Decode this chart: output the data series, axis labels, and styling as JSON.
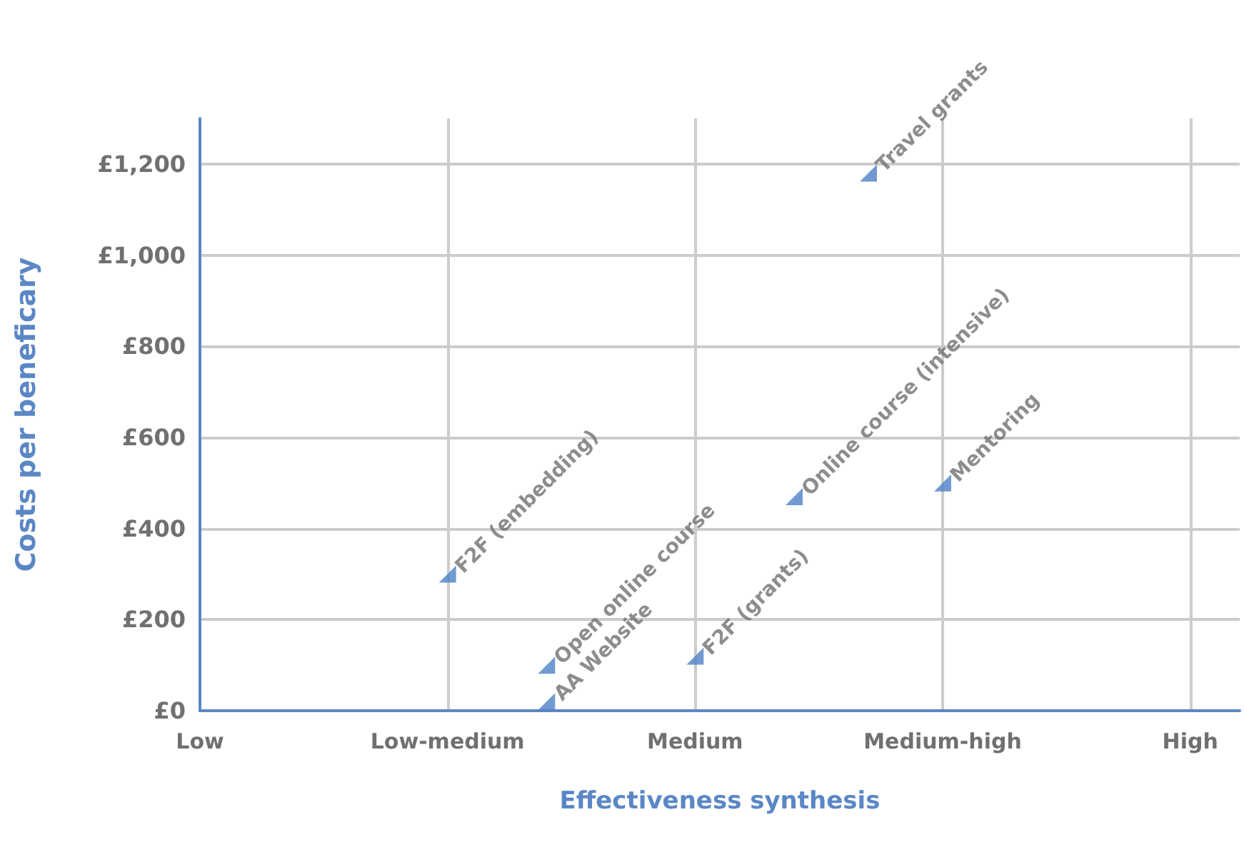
{
  "chart_data": {
    "type": "scatter",
    "xlabel": "Effectiveness synthesis",
    "ylabel": "Costs per beneficary",
    "categories": [
      "Low",
      null,
      null,
      null,
      null,
      null,
      null,
      null,
      null,
      null,
      "Low-medium",
      null,
      null,
      null,
      null,
      null,
      null,
      null,
      null,
      null,
      "Medium",
      null,
      null,
      null,
      null,
      null,
      null,
      null,
      null,
      null,
      "Medium-high",
      null,
      null,
      null,
      null,
      null,
      null,
      null,
      null,
      null,
      "High",
      null,
      null
    ],
    "ylim": [
      0,
      1300
    ],
    "yticks": [
      {
        "value": 0,
        "label": "£0"
      },
      {
        "value": 200,
        "label": "£200"
      },
      {
        "value": 400,
        "label": "£400"
      },
      {
        "value": 600,
        "label": "£600"
      },
      {
        "value": 800,
        "label": "£800"
      },
      {
        "value": 1000,
        "label": "£1,000"
      },
      {
        "value": 1200,
        "label": "£1,200"
      }
    ],
    "grid": true,
    "marker": "triangle",
    "series": [
      {
        "name": "F2F (embedding)",
        "color": "#4f81c7",
        "values": [
          null,
          null,
          null,
          null,
          null,
          null,
          null,
          null,
          null,
          null,
          300,
          null,
          null,
          null,
          null,
          null,
          null,
          null,
          null,
          null,
          null,
          null,
          null,
          null,
          null,
          null,
          null,
          null,
          null,
          null,
          null,
          null,
          null,
          null,
          null,
          null,
          null,
          null,
          null,
          null,
          null,
          null,
          null
        ]
      },
      {
        "name": "Open online course",
        "color": "#4f81c7",
        "values": [
          null,
          null,
          null,
          null,
          null,
          null,
          null,
          null,
          null,
          null,
          null,
          null,
          null,
          null,
          100,
          null,
          null,
          null,
          null,
          null,
          null,
          null,
          null,
          null,
          null,
          null,
          null,
          null,
          null,
          null,
          null,
          null,
          null,
          null,
          null,
          null,
          null,
          null,
          null,
          null,
          null,
          null,
          null
        ]
      },
      {
        "name": "AA Website",
        "color": "#4f81c7",
        "values": [
          null,
          null,
          null,
          null,
          null,
          null,
          null,
          null,
          null,
          null,
          null,
          null,
          null,
          null,
          20,
          null,
          null,
          null,
          null,
          null,
          null,
          null,
          null,
          null,
          null,
          null,
          null,
          null,
          null,
          null,
          null,
          null,
          null,
          null,
          null,
          null,
          null,
          null,
          null,
          null,
          null,
          null,
          null
        ]
      },
      {
        "name": "F2F (grants)",
        "color": "#4f81c7",
        "values": [
          null,
          null,
          null,
          null,
          null,
          null,
          null,
          null,
          null,
          null,
          null,
          null,
          null,
          null,
          null,
          null,
          null,
          null,
          null,
          null,
          120,
          null,
          null,
          null,
          null,
          null,
          null,
          null,
          null,
          null,
          null,
          null,
          null,
          null,
          null,
          null,
          null,
          null,
          null,
          null,
          null,
          null,
          null
        ]
      },
      {
        "name": "Online course (intensive)",
        "color": "#4f81c7",
        "values": [
          null,
          null,
          null,
          null,
          null,
          null,
          null,
          null,
          null,
          null,
          null,
          null,
          null,
          null,
          null,
          null,
          null,
          null,
          null,
          null,
          null,
          null,
          null,
          null,
          470,
          null,
          null,
          null,
          null,
          null,
          null,
          null,
          null,
          null,
          null,
          null,
          null,
          null,
          null,
          null,
          null,
          null,
          null
        ]
      },
      {
        "name": "Travel grants",
        "color": "#4f81c7",
        "values": [
          null,
          null,
          null,
          null,
          null,
          null,
          null,
          null,
          null,
          null,
          null,
          null,
          null,
          null,
          null,
          null,
          null,
          null,
          null,
          null,
          null,
          null,
          null,
          null,
          null,
          null,
          null,
          1180,
          null,
          null,
          null,
          null,
          null,
          null,
          null,
          null,
          null,
          null,
          null,
          null,
          null,
          null,
          null
        ]
      },
      {
        "name": "Mentoring",
        "color": "#4f81c7",
        "values": [
          null,
          null,
          null,
          null,
          null,
          null,
          null,
          null,
          null,
          null,
          null,
          null,
          null,
          null,
          null,
          null,
          null,
          null,
          null,
          null,
          null,
          null,
          null,
          null,
          null,
          null,
          null,
          null,
          null,
          null,
          500,
          null,
          null,
          null,
          null,
          null,
          null,
          null,
          null,
          null,
          null,
          null,
          null
        ]
      }
    ]
  }
}
